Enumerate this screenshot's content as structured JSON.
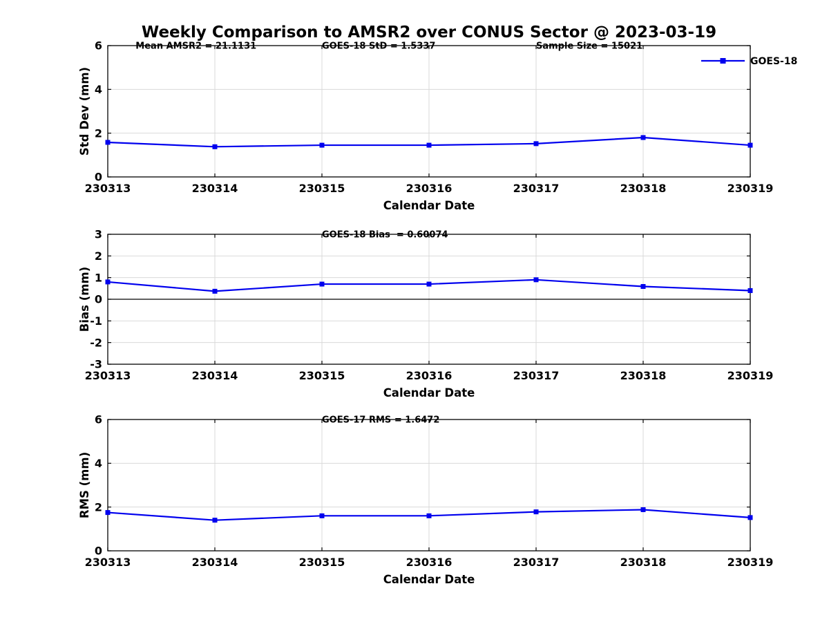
{
  "title": "Weekly Comparison to AMSR2 over CONUS Sector @ 2023-03-19",
  "colors": {
    "line": "#0000EE",
    "marker": "#0000EE",
    "grid": "#D9D9D9",
    "axis": "#000000",
    "zero_line": "#000000",
    "text": "#000000",
    "background": "#FFFFFF"
  },
  "legend": {
    "label": "GOES-18",
    "marker": "filled-square"
  },
  "x_axis": {
    "label": "Calendar Date",
    "categories": [
      "230313",
      "230314",
      "230315",
      "230316",
      "230317",
      "230318",
      "230319"
    ]
  },
  "chart_data": [
    {
      "type": "line",
      "ylabel": "Std Dev (mm)",
      "xlabel": "Calendar Date",
      "ylim": [
        0,
        6
      ],
      "yticks": [
        0,
        2,
        4,
        6
      ],
      "grid": true,
      "zero_line": false,
      "show_legend": true,
      "categories": [
        "230313",
        "230314",
        "230315",
        "230316",
        "230317",
        "230318",
        "230319"
      ],
      "series": [
        {
          "name": "GOES-18",
          "values": [
            1.58,
            1.38,
            1.45,
            1.45,
            1.52,
            1.8,
            1.45
          ]
        }
      ],
      "annotations": [
        {
          "text": "Mean AMSR2 = 21.1131",
          "x_index": 0.26
        },
        {
          "text": "GOES-18 StD = 1.5337",
          "x_index": 2
        },
        {
          "text": "Sample Size = 15021",
          "x_index": 4
        }
      ]
    },
    {
      "type": "line",
      "ylabel": "Bias (mm)",
      "xlabel": "Calendar Date",
      "ylim": [
        -3,
        3
      ],
      "yticks": [
        -3,
        -2,
        -1,
        0,
        1,
        2,
        3
      ],
      "grid": true,
      "zero_line": true,
      "show_legend": false,
      "categories": [
        "230313",
        "230314",
        "230315",
        "230316",
        "230317",
        "230318",
        "230319"
      ],
      "series": [
        {
          "name": "GOES-18",
          "values": [
            0.8,
            0.37,
            0.7,
            0.7,
            0.9,
            0.59,
            0.4
          ]
        }
      ],
      "annotations": [
        {
          "text": "GOES-18 Bias  = 0.60074",
          "x_index": 2
        }
      ]
    },
    {
      "type": "line",
      "ylabel": "RMS (mm)",
      "xlabel": "Calendar Date",
      "ylim": [
        0,
        6
      ],
      "yticks": [
        0,
        2,
        4,
        6
      ],
      "grid": true,
      "zero_line": false,
      "show_legend": false,
      "categories": [
        "230313",
        "230314",
        "230315",
        "230316",
        "230317",
        "230318",
        "230319"
      ],
      "series": [
        {
          "name": "GOES-18",
          "values": [
            1.75,
            1.4,
            1.6,
            1.6,
            1.78,
            1.88,
            1.52
          ]
        }
      ],
      "annotations": [
        {
          "text": "GOES-17 RMS = 1.6472",
          "x_index": 2
        }
      ]
    }
  ]
}
